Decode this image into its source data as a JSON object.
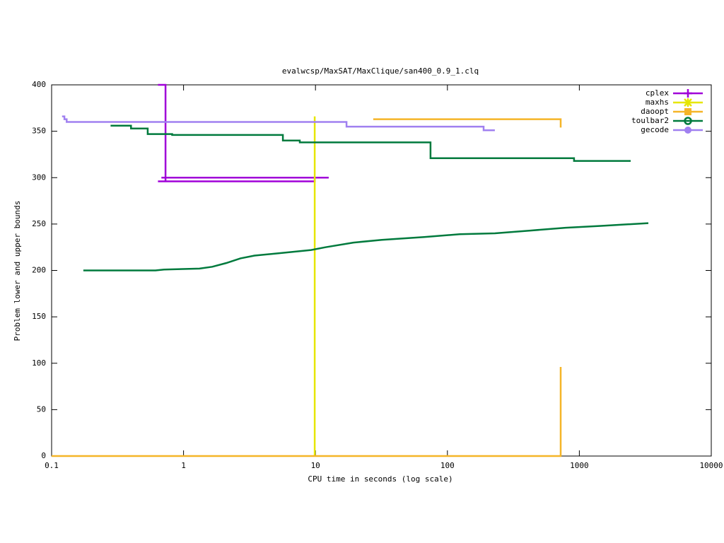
{
  "chart_data": {
    "type": "line",
    "title": "evalwcsp/MaxSAT/MaxClique/san400_0.9_1.clq",
    "x_label": "CPU time in seconds (log scale)",
    "y_label": "Problem lower and upper bounds",
    "xlog": true,
    "xlim": [
      0.1,
      10000
    ],
    "xticks": [
      0.1,
      1,
      10,
      100,
      1000,
      10000
    ],
    "ylim": [
      0,
      400
    ],
    "yticks": [
      0,
      50,
      100,
      150,
      200,
      250,
      300,
      350,
      400
    ],
    "grid": false,
    "legend": "top-right",
    "series": [
      {
        "name": "cplex",
        "color": "#a000d8",
        "marker": "plus",
        "x": [
          0.64,
          0.73,
          0.73,
          null,
          0.64,
          9.86,
          9.86,
          null,
          0.68,
          12.6
        ],
        "values": [
          400,
          400,
          296,
          null,
          296,
          296,
          300,
          null,
          300,
          300
        ]
      },
      {
        "name": "maxhs",
        "color": "#e6e600",
        "marker": "star",
        "x": [
          9.86,
          9.86
        ],
        "values": [
          0,
          366
        ]
      },
      {
        "name": "daoopt",
        "color": "#f5b528",
        "marker": "square",
        "x": [
          0.1,
          722,
          722,
          null,
          27.4,
          722,
          722
        ],
        "values": [
          0,
          0,
          96,
          null,
          363,
          363,
          354
        ]
      },
      {
        "name": "toulbar2",
        "color": "#007a3d",
        "marker": "circle",
        "x": [
          0.28,
          0.4,
          0.4,
          0.535,
          0.535,
          0.82,
          0.82,
          5.66,
          5.66,
          7.6,
          7.6,
          74.5,
          74.5,
          912,
          912,
          2450,
          null,
          0.174,
          0.613,
          0.711,
          1.32,
          1.65,
          2.11,
          2.7,
          3.45,
          5.66,
          9.26,
          11.9,
          19.4,
          31.8,
          66.7,
          124,
          229,
          425,
          787,
          1459,
          3334
        ],
        "values": [
          356,
          356,
          353,
          353,
          347,
          347,
          346,
          346,
          340,
          340,
          338,
          338,
          321,
          321,
          318,
          318,
          null,
          200,
          200,
          201,
          202,
          204,
          208,
          213,
          216,
          219,
          222,
          225,
          230,
          233,
          236,
          239,
          240,
          243,
          246,
          248,
          251
        ]
      },
      {
        "name": "gecode",
        "color": "#a080f0",
        "marker": "dot",
        "x": [
          0.12,
          0.125,
          0.125,
          0.13,
          0.13,
          17.2,
          17.2,
          188,
          188,
          229
        ],
        "values": [
          366,
          366,
          363,
          363,
          360,
          360,
          355,
          355,
          351,
          351
        ]
      }
    ]
  }
}
